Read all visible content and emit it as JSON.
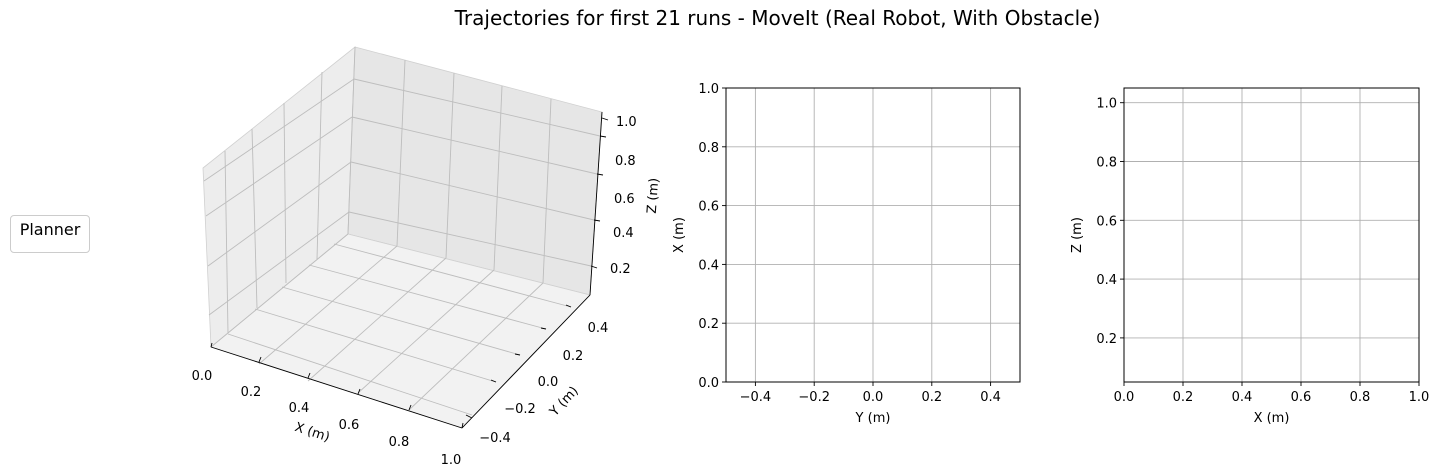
{
  "figure": {
    "title": "Trajectories for first 21 runs - MoveIt (Real Robot, With Obstacle)",
    "legend_title": "Planner"
  },
  "chart_data": [
    {
      "type": "line",
      "projection": "3d",
      "series": [],
      "xlabel": "X (m)",
      "ylabel": "Y (m)",
      "zlabel": "Z (m)",
      "xlim": [
        0.0,
        1.0
      ],
      "ylim": [
        -0.5,
        0.5
      ],
      "zlim": [
        0.05,
        1.05
      ],
      "xticks": [
        "0.0",
        "0.2",
        "0.4",
        "0.6",
        "0.8",
        "1.0"
      ],
      "yticks": [
        "−0.4",
        "−0.2",
        "0.0",
        "0.2",
        "0.4"
      ],
      "zticks": [
        "0.2",
        "0.4",
        "0.6",
        "0.8",
        "1.0"
      ],
      "grid": true
    },
    {
      "type": "line",
      "series": [],
      "xlabel": "Y (m)",
      "ylabel": "X (m)",
      "xlim": [
        -0.5,
        0.5
      ],
      "ylim": [
        0.0,
        1.0
      ],
      "xticks": [
        -0.4,
        -0.2,
        0.0,
        0.2,
        0.4
      ],
      "xtick_labels": [
        "−0.4",
        "−0.2",
        "0.0",
        "0.2",
        "0.4"
      ],
      "yticks": [
        0.0,
        0.2,
        0.4,
        0.6,
        0.8,
        1.0
      ],
      "ytick_labels": [
        "0.0",
        "0.2",
        "0.4",
        "0.6",
        "0.8",
        "1.0"
      ],
      "grid": true
    },
    {
      "type": "line",
      "series": [],
      "xlabel": "X (m)",
      "ylabel": "Z (m)",
      "xlim": [
        0.0,
        1.0
      ],
      "ylim": [
        0.05,
        1.05
      ],
      "xticks": [
        0.0,
        0.2,
        0.4,
        0.6,
        0.8,
        1.0
      ],
      "xtick_labels": [
        "0.0",
        "0.2",
        "0.4",
        "0.6",
        "0.8",
        "1.0"
      ],
      "yticks": [
        0.2,
        0.4,
        0.6,
        0.8,
        1.0
      ],
      "ytick_labels": [
        "0.2",
        "0.4",
        "0.6",
        "0.8",
        "1.0"
      ],
      "grid": true
    }
  ]
}
